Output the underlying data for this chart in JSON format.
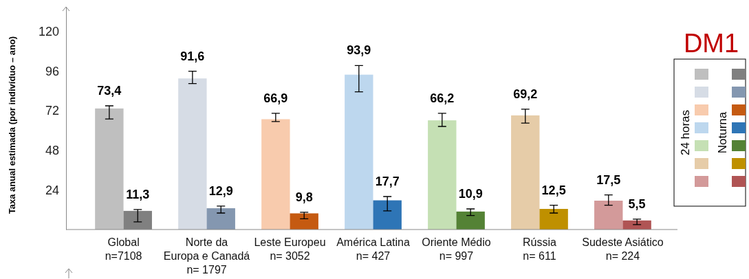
{
  "chart_data": {
    "type": "bar",
    "title": "DM1",
    "ylabel": "Taxa anual estimada (por indivíduo – ano)",
    "categories": [
      "Global\nn=7108",
      "Norte da\nEuropa e Canadá\nn= 1797",
      "Leste Europeu\nn= 3052",
      "América Latina\nn= 427",
      "Oriente Médio\nn= 997",
      "Rússia\nn= 611",
      "Sudeste Asiático\nn= 224"
    ],
    "series": [
      {
        "name": "24 horas",
        "colors": [
          "#bfbfbf",
          "#d6dce5",
          "#f8cbad",
          "#bdd7ee",
          "#c5e0b4",
          "#e6cca8",
          "#d39a9a"
        ],
        "values": [
          73.4,
          91.6,
          66.9,
          93.9,
          66.2,
          69.2,
          17.5
        ],
        "value_labels": [
          "73,4",
          "91,6",
          "66,9",
          "93,9",
          "66,2",
          "69,2",
          "17,5"
        ],
        "errors": [
          [
            67,
            75
          ],
          [
            88.5,
            96
          ],
          [
            65.5,
            70.5
          ],
          [
            83.5,
            99.4
          ],
          [
            62.5,
            70.5
          ],
          [
            64.5,
            73
          ],
          [
            14.7,
            21
          ]
        ]
      },
      {
        "name": "Noturna",
        "colors": [
          "#808080",
          "#8497b0",
          "#c55a11",
          "#2e75b6",
          "#548235",
          "#bf9000",
          "#b05454"
        ],
        "values": [
          11.3,
          12.9,
          9.8,
          17.7,
          10.9,
          12.5,
          5.5
        ],
        "value_labels": [
          "11,3",
          "12,9",
          "9,8",
          "17,7",
          "10,9",
          "12,5",
          "5,5"
        ],
        "errors": [
          [
            4.6,
            12.1
          ],
          [
            10,
            14.2
          ],
          [
            6.5,
            10.5
          ],
          [
            11.3,
            20
          ],
          [
            8.5,
            12.5
          ],
          [
            10,
            14.7
          ],
          [
            3,
            6.3
          ]
        ]
      }
    ],
    "ylim": [
      0,
      135
    ],
    "yticks": [
      24,
      48,
      72,
      96,
      120
    ],
    "legend": "right"
  }
}
